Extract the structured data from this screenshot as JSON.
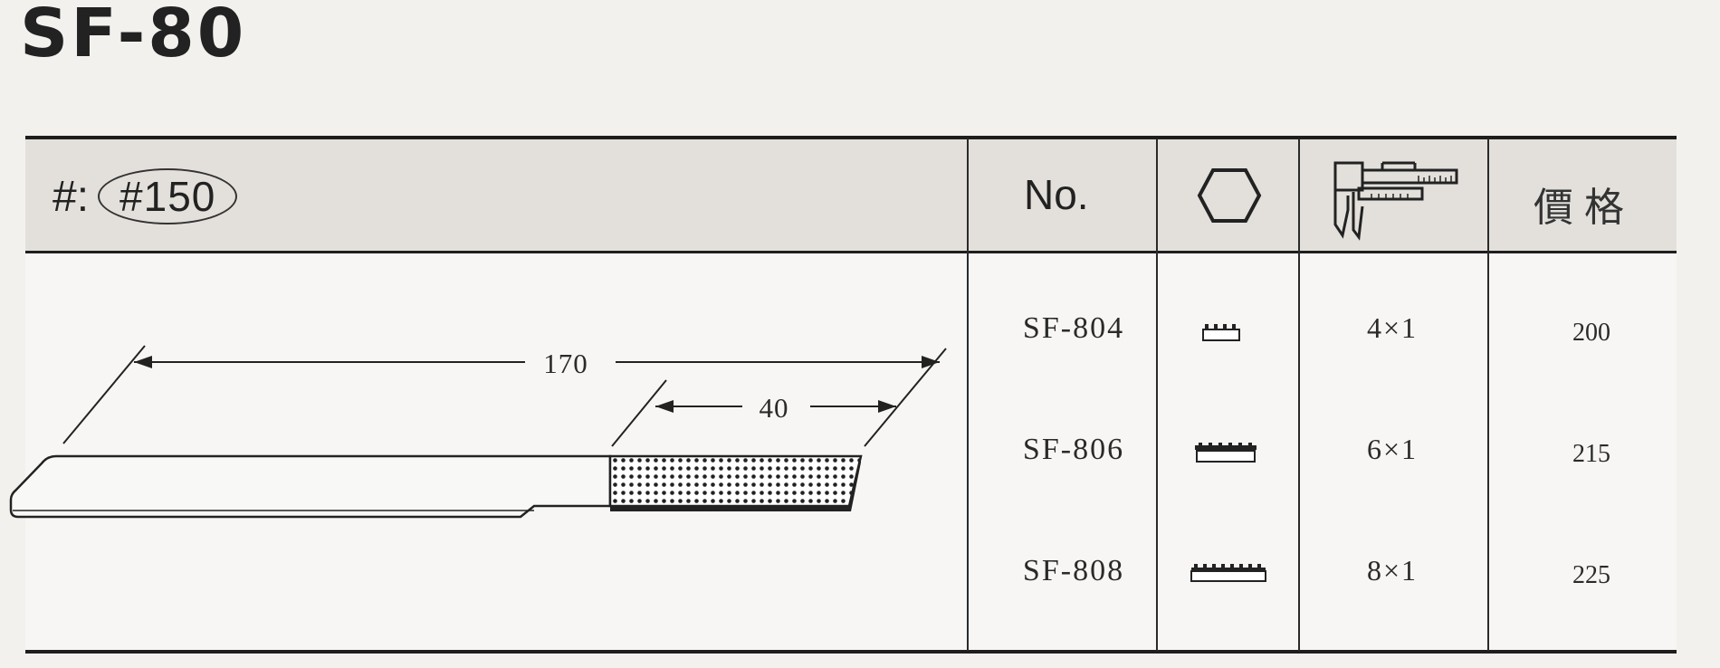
{
  "title": "SF-80",
  "grit": {
    "prefix": "#:",
    "value": "#150"
  },
  "header": {
    "no_label": "No.",
    "shape_icon": "hexagon-icon",
    "size_icon": "caliper-icon",
    "price_label": "價格"
  },
  "drawing": {
    "total_length": "170",
    "coated_length": "40"
  },
  "rows": [
    {
      "model": "SF-804",
      "size": "4×1",
      "price": "200",
      "profile_icon": "profile-4-icon"
    },
    {
      "model": "SF-806",
      "size": "6×1",
      "price": "215",
      "profile_icon": "profile-6-icon"
    },
    {
      "model": "SF-808",
      "size": "8×1",
      "price": "225",
      "profile_icon": "profile-8-icon"
    }
  ]
}
